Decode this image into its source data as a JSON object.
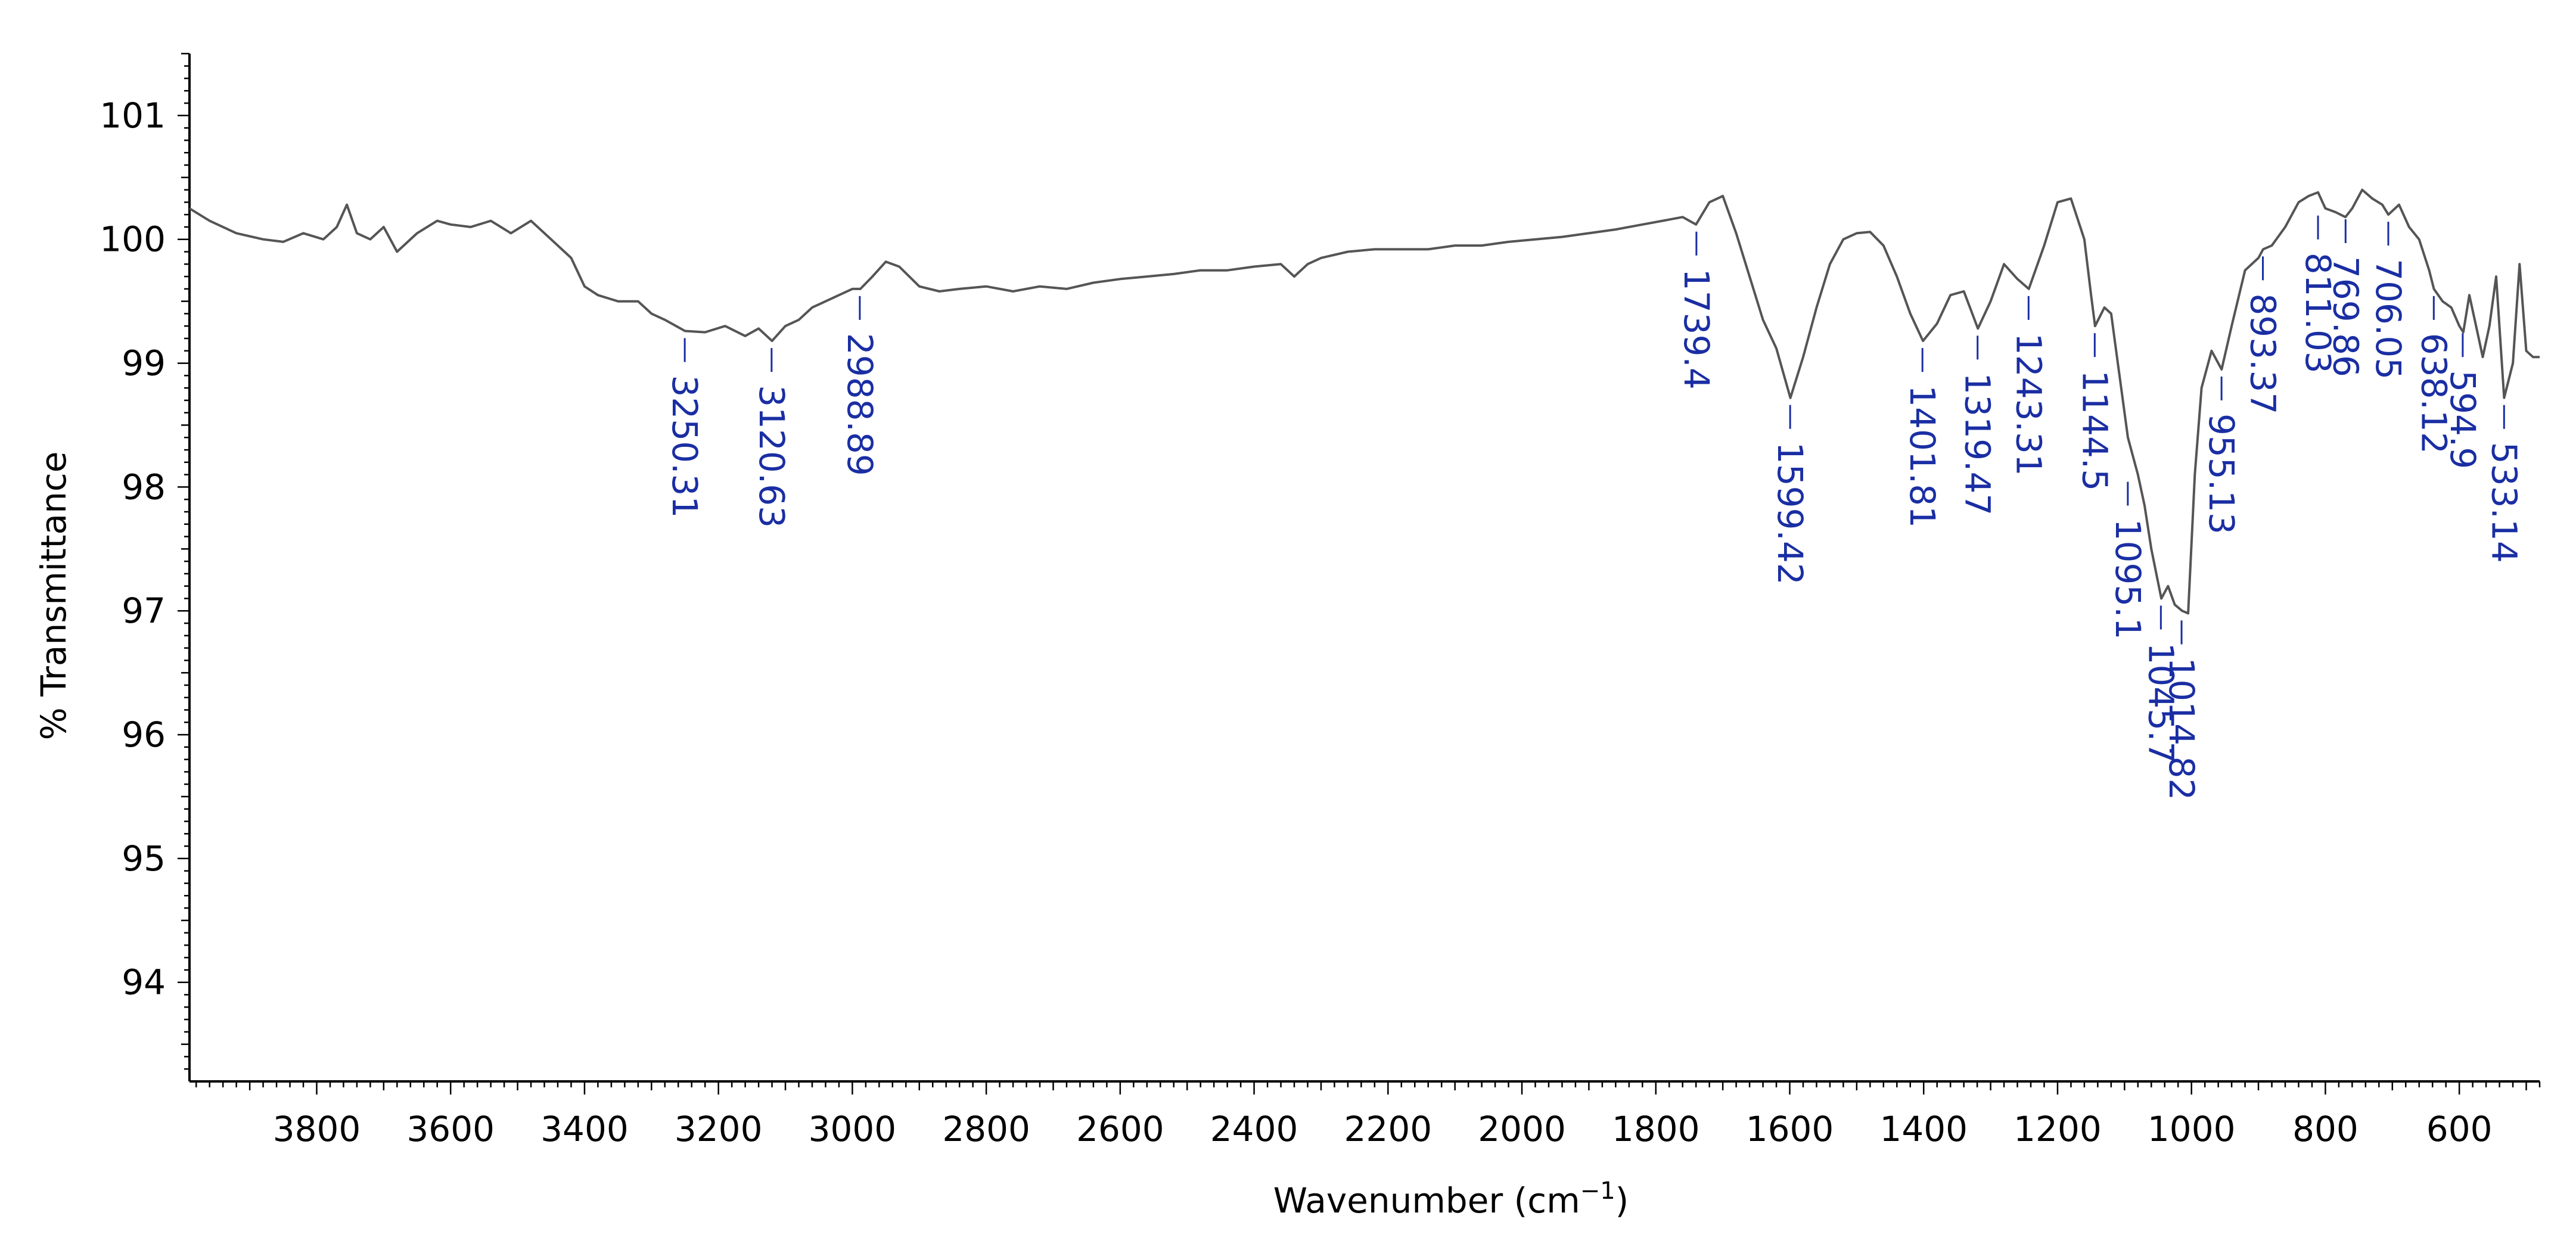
{
  "chart_data": {
    "type": "line",
    "xlabel": "Wavenumber (cm",
    "xlabel_sup": "−1",
    "xlabel_close": ")",
    "ylabel": "% Transmittance",
    "xlim": [
      3990,
      480
    ],
    "ylim": [
      93.2,
      101.5
    ],
    "x_ticks": [
      3800,
      3600,
      3400,
      3200,
      3000,
      2800,
      2600,
      2400,
      2200,
      2000,
      1800,
      1600,
      1400,
      1200,
      1000,
      800,
      600
    ],
    "y_ticks": [
      94,
      95,
      96,
      97,
      98,
      99,
      100,
      101
    ],
    "line_color": "#555555",
    "peak_label_color": "#1a2ea3",
    "series": [
      {
        "x": [
          3990,
          3960,
          3920,
          3880,
          3850,
          3820,
          3790,
          3770,
          3755,
          3740,
          3720,
          3700,
          3680,
          3650,
          3620,
          3600,
          3570,
          3540,
          3510,
          3480,
          3450,
          3420,
          3400,
          3380,
          3350,
          3320,
          3300,
          3280,
          3250,
          3220,
          3190,
          3160,
          3140,
          3120,
          3100,
          3080,
          3060,
          3040,
          3020,
          3000,
          2988,
          2970,
          2950,
          2930,
          2900,
          2870,
          2840,
          2800,
          2760,
          2720,
          2680,
          2640,
          2600,
          2560,
          2520,
          2480,
          2440,
          2400,
          2360,
          2340,
          2320,
          2300,
          2260,
          2220,
          2180,
          2140,
          2100,
          2060,
          2020,
          1980,
          1940,
          1900,
          1860,
          1820,
          1790,
          1760,
          1740,
          1720,
          1700,
          1680,
          1660,
          1640,
          1620,
          1599,
          1580,
          1560,
          1540,
          1520,
          1500,
          1480,
          1460,
          1440,
          1420,
          1401,
          1380,
          1360,
          1340,
          1319,
          1300,
          1280,
          1260,
          1243,
          1220,
          1200,
          1180,
          1160,
          1150,
          1144,
          1130,
          1120,
          1110,
          1095,
          1080,
          1070,
          1060,
          1045,
          1035,
          1025,
          1014,
          1005,
          995,
          985,
          970,
          955,
          940,
          920,
          900,
          893,
          880,
          860,
          840,
          825,
          811,
          800,
          785,
          770,
          760,
          745,
          730,
          715,
          706,
          690,
          675,
          660,
          645,
          638,
          625,
          612,
          600,
          594,
          585,
          575,
          565,
          555,
          545,
          533,
          520,
          510,
          500,
          490,
          480
        ],
        "y": [
          100.25,
          100.15,
          100.05,
          100.0,
          99.98,
          100.05,
          100.0,
          100.1,
          100.28,
          100.05,
          100.0,
          100.1,
          99.9,
          100.05,
          100.15,
          100.12,
          100.1,
          100.15,
          100.05,
          100.15,
          100.0,
          99.85,
          99.62,
          99.55,
          99.5,
          99.5,
          99.4,
          99.35,
          99.26,
          99.25,
          99.3,
          99.22,
          99.28,
          99.18,
          99.3,
          99.35,
          99.45,
          99.5,
          99.55,
          99.6,
          99.6,
          99.7,
          99.82,
          99.78,
          99.62,
          99.58,
          99.6,
          99.62,
          99.58,
          99.62,
          99.6,
          99.65,
          99.68,
          99.7,
          99.72,
          99.75,
          99.75,
          99.78,
          99.8,
          99.7,
          99.8,
          99.85,
          99.9,
          99.92,
          99.92,
          99.92,
          99.95,
          99.95,
          99.98,
          100.0,
          100.02,
          100.05,
          100.08,
          100.12,
          100.15,
          100.18,
          100.12,
          100.3,
          100.35,
          100.05,
          99.7,
          99.35,
          99.12,
          98.72,
          99.05,
          99.45,
          99.8,
          100.0,
          100.05,
          100.06,
          99.95,
          99.7,
          99.4,
          99.18,
          99.32,
          99.55,
          99.58,
          99.28,
          99.5,
          99.8,
          99.68,
          99.6,
          99.95,
          100.3,
          100.33,
          100.0,
          99.55,
          99.3,
          99.45,
          99.4,
          99.0,
          98.4,
          98.1,
          97.85,
          97.5,
          97.1,
          97.2,
          97.05,
          97.0,
          96.98,
          98.1,
          98.8,
          99.1,
          98.95,
          99.3,
          99.75,
          99.85,
          99.92,
          99.95,
          100.1,
          100.3,
          100.35,
          100.38,
          100.25,
          100.22,
          100.18,
          100.25,
          100.4,
          100.33,
          100.28,
          100.2,
          100.28,
          100.1,
          100.0,
          99.75,
          99.6,
          99.5,
          99.45,
          99.3,
          99.25,
          99.55,
          99.3,
          99.05,
          99.3,
          99.7,
          98.72,
          99.0,
          99.8,
          99.1,
          99.05,
          99.05
        ]
      }
    ],
    "peak_labels": [
      {
        "x": 3250.31,
        "y": 99.26,
        "text": "3250.31"
      },
      {
        "x": 3120.63,
        "y": 99.18,
        "text": "3120.63"
      },
      {
        "x": 2988.89,
        "y": 99.6,
        "text": "2988.89"
      },
      {
        "x": 1739.4,
        "y": 100.12,
        "text": "1739.4"
      },
      {
        "x": 1599.42,
        "y": 98.72,
        "text": "1599.42"
      },
      {
        "x": 1401.81,
        "y": 99.18,
        "text": "1401.81"
      },
      {
        "x": 1319.47,
        "y": 99.28,
        "text": "1319.47"
      },
      {
        "x": 1243.31,
        "y": 99.6,
        "text": "1243.31"
      },
      {
        "x": 1144.5,
        "y": 99.3,
        "text": "1144.5"
      },
      {
        "x": 1095.1,
        "y": 98.1,
        "text": "1095.1"
      },
      {
        "x": 1045.7,
        "y": 97.1,
        "text": "1045.7"
      },
      {
        "x": 1014.82,
        "y": 96.98,
        "text": "1014.82"
      },
      {
        "x": 955.13,
        "y": 98.95,
        "text": "955.13"
      },
      {
        "x": 893.37,
        "y": 99.92,
        "text": "893.37"
      },
      {
        "x": 811.03,
        "y": 100.25,
        "text": "811.03"
      },
      {
        "x": 769.86,
        "y": 100.22,
        "text": "769.86"
      },
      {
        "x": 706.05,
        "y": 100.2,
        "text": "706.05"
      },
      {
        "x": 638.12,
        "y": 99.6,
        "text": "638.12"
      },
      {
        "x": 594.9,
        "y": 99.3,
        "text": "594.9"
      },
      {
        "x": 533.14,
        "y": 98.72,
        "text": "533.14"
      }
    ]
  }
}
